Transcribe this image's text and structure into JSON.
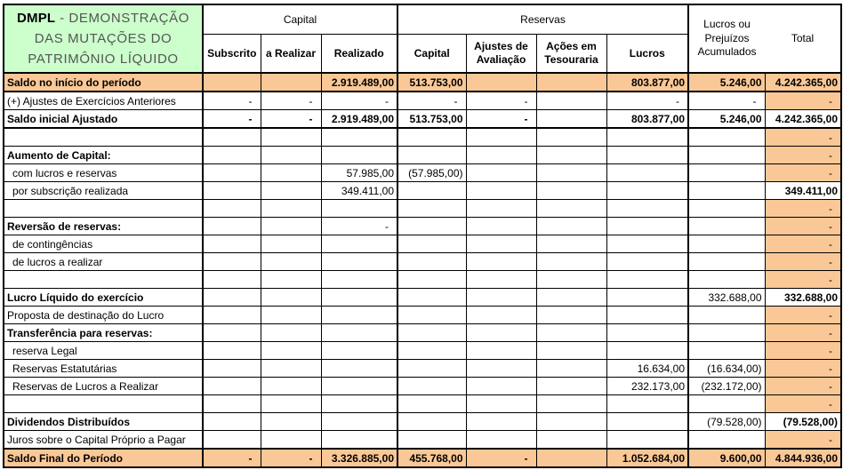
{
  "title": {
    "line1_bold": "DMPL",
    "line1_rest": " - DEMONSTRAÇÃO",
    "line2": "DAS MUTAÇÕES DO",
    "line3": "PATRIMÔNIO LÍQUIDO"
  },
  "colors": {
    "header_green": "#CCFFCC",
    "row_orange": "#FAC896",
    "border": "#000000"
  },
  "header": {
    "group_capital": "Capital",
    "group_reservas": "Reservas",
    "col_subscrito": "Subscrito",
    "col_a_realizar": "a Realizar",
    "col_realizado": "Realizado",
    "col_capital": "Capital",
    "col_ajustes": "Ajustes de Avaliação",
    "col_acoes": "Ações em Tesouraria",
    "col_lucros": "Lucros",
    "col_lpa": "Lucros ou Prejuízos Acumulados",
    "col_total": "Total"
  },
  "columns_order": [
    "subscrito",
    "a-realizar",
    "realizado",
    "capital-reservas",
    "ajustes-avaliacao",
    "acoes-tesouraria",
    "lucros",
    "lucros-prejuizos-acumulados",
    "total"
  ],
  "rows": [
    {
      "label": "Saldo no início do período",
      "bold_label": true,
      "bold_values": true,
      "highlight": true,
      "thick_bottom": true,
      "total_white": false,
      "bold_total": false,
      "indent": false,
      "values": [
        "",
        "",
        "2.919.489,00",
        "513.753,00",
        "",
        "",
        "803.877,00",
        "5.246,00",
        "4.242.365,00"
      ]
    },
    {
      "label": "(+) Ajustes de Exercícios Anteriores",
      "bold_label": false,
      "bold_values": false,
      "highlight": false,
      "thick_bottom": false,
      "total_white": false,
      "bold_total": false,
      "indent": false,
      "values": [
        "-",
        "-",
        "-",
        "-",
        "-",
        "",
        "-",
        "-",
        "-"
      ]
    },
    {
      "label": "Saldo inicial Ajustado",
      "bold_label": true,
      "bold_values": true,
      "highlight": false,
      "thick_bottom": true,
      "total_white": true,
      "bold_total": true,
      "indent": false,
      "values": [
        "-",
        "-",
        "2.919.489,00",
        "513.753,00",
        "-",
        "",
        "803.877,00",
        "5.246,00",
        "4.242.365,00"
      ]
    },
    {
      "label": "",
      "bold_label": false,
      "bold_values": false,
      "highlight": false,
      "thick_bottom": false,
      "total_white": false,
      "bold_total": false,
      "indent": false,
      "values": [
        "",
        "",
        "",
        "",
        "",
        "",
        "",
        "",
        "-"
      ]
    },
    {
      "label": "Aumento de Capital:",
      "bold_label": true,
      "bold_values": false,
      "highlight": false,
      "thick_bottom": false,
      "total_white": false,
      "bold_total": false,
      "indent": false,
      "values": [
        "",
        "",
        "",
        "",
        "",
        "",
        "",
        "",
        "-"
      ]
    },
    {
      "label": "com lucros e reservas",
      "bold_label": false,
      "bold_values": false,
      "highlight": false,
      "thick_bottom": false,
      "total_white": false,
      "bold_total": false,
      "indent": true,
      "values": [
        "",
        "",
        "57.985,00",
        "(57.985,00)",
        "",
        "",
        "",
        "",
        "-"
      ]
    },
    {
      "label": "por subscrição realizada",
      "bold_label": false,
      "bold_values": false,
      "highlight": false,
      "thick_bottom": false,
      "total_white": true,
      "bold_total": true,
      "indent": true,
      "values": [
        "",
        "",
        "349.411,00",
        "",
        "",
        "",
        "",
        "",
        "349.411,00"
      ]
    },
    {
      "label": "",
      "bold_label": false,
      "bold_values": false,
      "highlight": false,
      "thick_bottom": false,
      "total_white": false,
      "bold_total": false,
      "indent": false,
      "values": [
        "",
        "",
        "",
        "",
        "",
        "",
        "",
        "",
        "-"
      ]
    },
    {
      "label": "Reversão de reservas:",
      "bold_label": true,
      "bold_values": false,
      "highlight": false,
      "thick_bottom": false,
      "total_white": false,
      "bold_total": false,
      "indent": false,
      "values": [
        "",
        "",
        "-",
        "",
        "",
        "",
        "",
        "",
        "-"
      ]
    },
    {
      "label": "de contingências",
      "bold_label": false,
      "bold_values": false,
      "highlight": false,
      "thick_bottom": false,
      "total_white": false,
      "bold_total": false,
      "indent": true,
      "values": [
        "",
        "",
        "",
        "",
        "",
        "",
        "",
        "",
        "-"
      ]
    },
    {
      "label": "de lucros a realizar",
      "bold_label": false,
      "bold_values": false,
      "highlight": false,
      "thick_bottom": false,
      "total_white": false,
      "bold_total": false,
      "indent": true,
      "values": [
        "",
        "",
        "",
        "",
        "",
        "",
        "",
        "",
        "-"
      ]
    },
    {
      "label": "",
      "bold_label": false,
      "bold_values": false,
      "highlight": false,
      "thick_bottom": false,
      "total_white": false,
      "bold_total": false,
      "indent": false,
      "values": [
        "",
        "",
        "",
        "",
        "",
        "",
        "",
        "",
        "-"
      ]
    },
    {
      "label": "Lucro Líquido do exercício",
      "bold_label": true,
      "bold_values": false,
      "highlight": false,
      "thick_bottom": false,
      "total_white": true,
      "bold_total": true,
      "indent": false,
      "values": [
        "",
        "",
        "",
        "",
        "",
        "",
        "",
        "332.688,00",
        "332.688,00"
      ]
    },
    {
      "label": "Proposta de destinação do Lucro",
      "bold_label": false,
      "bold_values": false,
      "highlight": false,
      "thick_bottom": false,
      "total_white": false,
      "bold_total": false,
      "indent": false,
      "values": [
        "",
        "",
        "",
        "",
        "",
        "",
        "",
        "",
        "-"
      ]
    },
    {
      "label": "Transferência para reservas:",
      "bold_label": true,
      "bold_values": false,
      "highlight": false,
      "thick_bottom": false,
      "total_white": false,
      "bold_total": false,
      "indent": false,
      "values": [
        "",
        "",
        "",
        "",
        "",
        "",
        "",
        "",
        "-"
      ]
    },
    {
      "label": "reserva Legal",
      "bold_label": false,
      "bold_values": false,
      "highlight": false,
      "thick_bottom": false,
      "total_white": false,
      "bold_total": false,
      "indent": true,
      "values": [
        "",
        "",
        "",
        "",
        "",
        "",
        "",
        "",
        "-"
      ]
    },
    {
      "label": "Reservas Estatutárias",
      "bold_label": false,
      "bold_values": false,
      "highlight": false,
      "thick_bottom": false,
      "total_white": false,
      "bold_total": false,
      "indent": true,
      "values": [
        "",
        "",
        "",
        "",
        "",
        "",
        "16.634,00",
        "(16.634,00)",
        "-"
      ]
    },
    {
      "label": "Reservas de Lucros a Realizar",
      "bold_label": false,
      "bold_values": false,
      "highlight": false,
      "thick_bottom": false,
      "total_white": false,
      "bold_total": false,
      "indent": true,
      "values": [
        "",
        "",
        "",
        "",
        "",
        "",
        "232.173,00",
        "(232.172,00)",
        "-"
      ]
    },
    {
      "label": "",
      "bold_label": false,
      "bold_values": false,
      "highlight": false,
      "thick_bottom": false,
      "total_white": false,
      "bold_total": false,
      "indent": false,
      "values": [
        "",
        "",
        "",
        "",
        "",
        "",
        "",
        "",
        "-"
      ]
    },
    {
      "label": "Dividendos Distribuídos",
      "bold_label": true,
      "bold_values": false,
      "highlight": false,
      "thick_bottom": false,
      "total_white": true,
      "bold_total": true,
      "indent": false,
      "values": [
        "",
        "",
        "",
        "",
        "",
        "",
        "",
        "(79.528,00)",
        "(79.528,00)"
      ]
    },
    {
      "label": "Juros sobre o Capital Próprio a Pagar",
      "bold_label": false,
      "bold_values": false,
      "highlight": false,
      "thick_bottom": true,
      "total_white": false,
      "bold_total": false,
      "indent": false,
      "values": [
        "",
        "",
        "",
        "",
        "",
        "",
        "",
        "",
        "-"
      ]
    },
    {
      "label": "Saldo Final do Período",
      "bold_label": true,
      "bold_values": true,
      "highlight": true,
      "thick_bottom": false,
      "total_white": false,
      "bold_total": true,
      "indent": false,
      "values": [
        "-",
        "-",
        "3.326.885,00",
        "455.768,00",
        "-",
        "",
        "1.052.684,00",
        "9.600,00",
        "4.844.936,00"
      ]
    }
  ]
}
